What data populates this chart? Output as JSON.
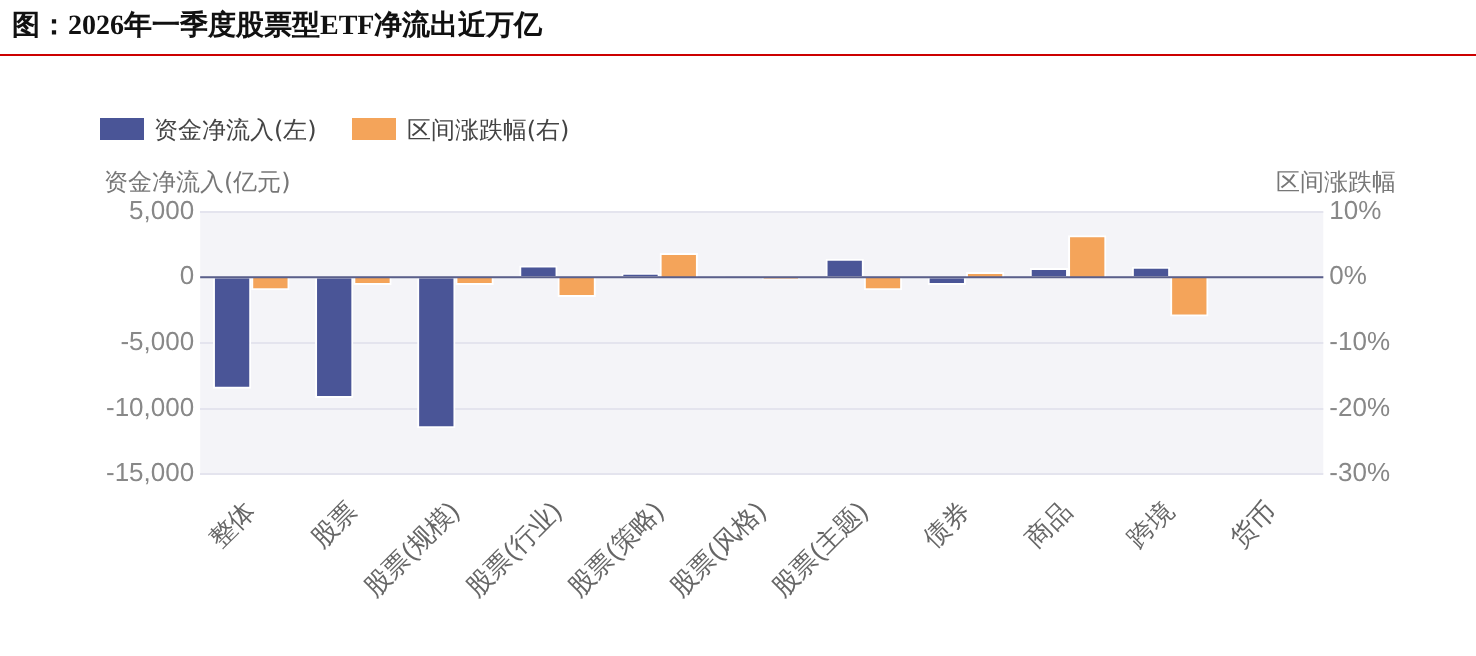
{
  "chart_data": {
    "type": "bar",
    "title": "图：2026年一季度股票型ETF净流出近万亿",
    "ylabel": "资金净流入(亿元)",
    "y2label": "区间涨跌幅",
    "categories": [
      "整体",
      "股票",
      "股票(规模)",
      "股票(行业)",
      "股票(策略)",
      "股票(风格)",
      "股票(主题)",
      "债券",
      "商品",
      "跨境",
      "货币"
    ],
    "series": [
      {
        "name": "资金净流入(左)",
        "color": "#4a5597",
        "values": [
          -8500,
          -9200,
          -11500,
          900,
          300,
          100,
          1400,
          -600,
          700,
          800,
          0
        ]
      },
      {
        "name": "区间涨跌幅(右)",
        "color": "#f4a45a",
        "axis": "y2",
        "values": [
          -2.0,
          -1.2,
          -1.2,
          -3.0,
          3.7,
          -0.4,
          -2.0,
          0.8,
          6.4,
          -6.0,
          0
        ]
      }
    ],
    "ylim": [
      -15000,
      5000
    ],
    "yticks": [
      {
        "value": -15000,
        "label": "-15,000"
      },
      {
        "value": -10000,
        "label": "-10,000"
      },
      {
        "value": -5000,
        "label": "-5,000"
      },
      0,
      {
        "value": 5000,
        "label": "5,000"
      }
    ],
    "y2lim": [
      -30,
      10
    ],
    "y2ticks": [
      {
        "value": -30,
        "label": "-30%"
      },
      {
        "value": -20,
        "label": "-20%"
      },
      {
        "value": -10,
        "label": "-10%"
      },
      {
        "value": 0,
        "label": "0%"
      },
      {
        "value": 10,
        "label": "10%"
      }
    ],
    "ref_lines": [
      {
        "axis": "y",
        "value": 0,
        "color": "#5a5f8a"
      }
    ],
    "grid": "y",
    "legend": "top left"
  }
}
